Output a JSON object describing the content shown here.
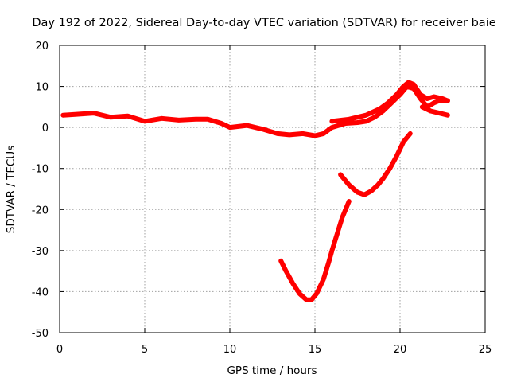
{
  "chart_data": {
    "type": "line",
    "title": "Day 192 of 2022, Sidereal Day-to-day VTEC variation (SDTVAR) for receiver baie",
    "xlabel": "GPS time / hours",
    "ylabel": "SDTVAR / TECUs",
    "xlim": [
      0,
      25
    ],
    "ylim": [
      -50,
      20
    ],
    "xticks": [
      "0",
      "5",
      "10",
      "15",
      "20",
      "25"
    ],
    "yticks": [
      "20",
      "10",
      "0",
      "-10",
      "-20",
      "-30",
      "-40",
      "-50"
    ],
    "grid": true,
    "series_color": "#ff0000",
    "series": [
      {
        "name": "main-trace",
        "x": [
          0.2,
          1,
          2,
          3,
          4,
          5,
          6,
          7,
          8,
          8.7,
          9.5,
          10,
          11,
          12,
          12.8,
          13.5,
          14.3,
          15,
          15.5,
          16,
          16.8,
          17.5,
          18,
          18.5,
          19,
          19.5,
          20,
          20.4,
          20.8,
          21.2,
          21.6,
          22,
          22.3,
          22.8
        ],
        "y": [
          3,
          3.2,
          3.5,
          2.5,
          2.8,
          1.5,
          2.2,
          1.8,
          2.0,
          2.0,
          1.0,
          0.0,
          0.5,
          -0.5,
          -1.5,
          -1.8,
          -1.5,
          -2.0,
          -1.5,
          0.0,
          1.0,
          1.2,
          1.5,
          2.5,
          4.0,
          6.0,
          8.0,
          10.0,
          9.5,
          7.0,
          5.0,
          6.0,
          6.5,
          6.5
        ]
      },
      {
        "name": "main-trace-upper",
        "x": [
          16,
          17,
          18,
          18.8,
          19.3,
          19.8,
          20.2,
          20.5,
          20.8,
          21.2,
          21.6,
          22,
          22.5,
          22.8
        ],
        "y": [
          1.5,
          2.0,
          3.0,
          4.5,
          6.0,
          8.0,
          10.0,
          11.0,
          10.5,
          8.0,
          7.0,
          7.5,
          7.0,
          6.5
        ]
      },
      {
        "name": "main-trace-lower",
        "x": [
          21.3,
          21.8,
          22.3,
          22.8
        ],
        "y": [
          5.0,
          4.0,
          3.5,
          3.0
        ]
      },
      {
        "name": "dip-trace",
        "x": [
          13,
          13.3,
          13.7,
          14.1,
          14.5,
          14.8,
          15.1,
          15.5,
          15.8,
          16.0,
          16.3,
          16.6,
          17.0
        ],
        "y": [
          -32.5,
          -35,
          -38,
          -40.5,
          -42,
          -42,
          -40.5,
          -37,
          -33,
          -30,
          -26,
          -22,
          -18
        ]
      },
      {
        "name": "recovery-trace",
        "x": [
          16.5,
          17.0,
          17.5,
          17.9,
          18.3,
          18.7,
          19.0,
          19.4,
          19.8,
          20.2,
          20.6
        ],
        "y": [
          -11.5,
          -14,
          -15.8,
          -16.4,
          -15.5,
          -14,
          -12.5,
          -10,
          -7,
          -3.5,
          -1.5
        ]
      }
    ]
  }
}
